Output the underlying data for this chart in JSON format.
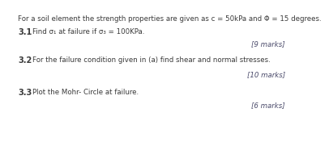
{
  "background_color": "#ffffff",
  "header_text": "For a soil element the strength properties are given as c = 50kPa and Φ = 15 degrees.",
  "q1_label": "3.1",
  "q1_text": "Find σ₁ at failure if σ₃ = 100KPa.",
  "q1_marks": "[9 marks]",
  "q2_label": "3.2",
  "q2_text": "For the failure condition given in (a) find shear and normal stresses.",
  "q2_marks": "[10 marks]",
  "q3_label": "3.3",
  "q3_text": "Plot the Mohr- Circle at failure.",
  "q3_marks": "[6 marks]",
  "header_fontsize": 6.2,
  "label_fontsize": 7.0,
  "body_fontsize": 6.2,
  "marks_fontsize": 6.2,
  "text_color": "#3a3a3a",
  "marks_color": "#4a4a6a"
}
